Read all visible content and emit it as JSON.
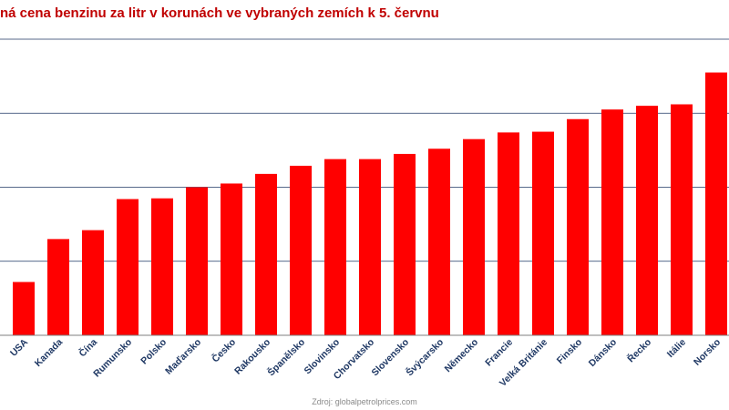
{
  "colors": {
    "title": "#c00000",
    "bar": "#ff0000",
    "gridline": "#1f3864",
    "axis": "#7f7f7f",
    "category_label": "#1f3864"
  },
  "chart_data": {
    "type": "bar",
    "title": "ná cena benzinu za litr v korunách ve vybraných zemích k 5. červnu",
    "xlabel": "",
    "ylabel": "",
    "source": "Zdroj: globalpetrolprices.com",
    "categories": [
      "USA",
      "Kanada",
      "Čína",
      "Rumunsko",
      "Polsko",
      "Maďarsko",
      "Česko",
      "Rakousko",
      "Španělsko",
      "Slovinsko",
      "Chorvatsko",
      "Slovensko",
      "Švýcarsko",
      "Německo",
      "Francie",
      "Velká Británie",
      "Finsko",
      "Dánsko",
      "Řecko",
      "Itálie",
      "Norsko"
    ],
    "values": [
      7.2,
      13.0,
      14.2,
      18.4,
      18.5,
      20.0,
      20.5,
      21.8,
      22.9,
      23.8,
      23.8,
      24.5,
      25.2,
      26.5,
      27.4,
      27.5,
      29.2,
      30.5,
      31.0,
      31.2,
      35.5
    ],
    "ylim": [
      0,
      40
    ],
    "gridlines": [
      10,
      20,
      30,
      40
    ],
    "grid": true,
    "legend": "none"
  }
}
